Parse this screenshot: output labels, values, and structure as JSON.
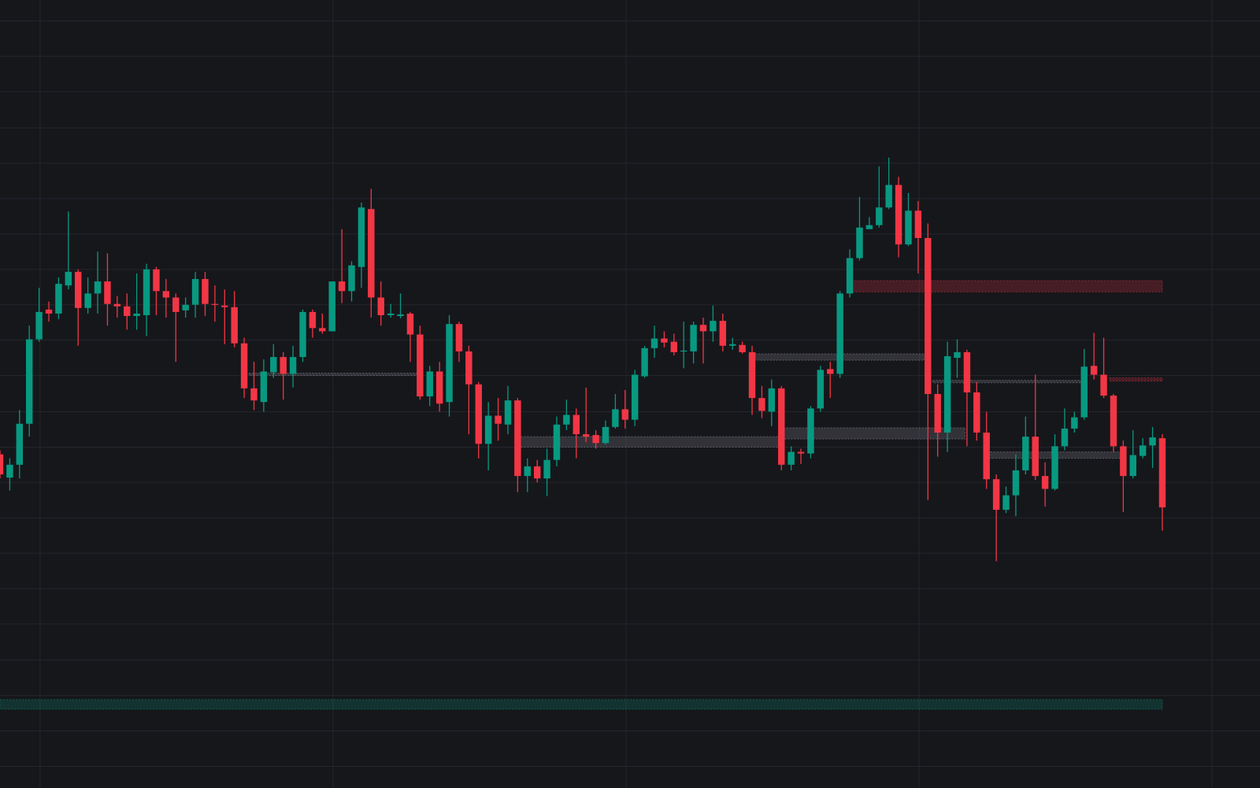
{
  "chart_data": {
    "type": "candlestick",
    "up_color": "#089981",
    "down_color": "#f23645",
    "grid": true,
    "xlim": [
      0,
      129
    ],
    "ylim": [
      0,
      980
    ],
    "xticks": [
      4.1,
      34.1,
      64.1,
      94.1,
      124.1
    ],
    "yticks": [
      27,
      71,
      115,
      159,
      204,
      248,
      292,
      336,
      380,
      424,
      468,
      513,
      557,
      601,
      645,
      689,
      733,
      777,
      821,
      866,
      910,
      954
    ],
    "open": [
      415,
      386,
      402,
      453,
      558,
      595,
      590,
      625,
      642,
      597,
      615,
      630,
      602,
      599,
      587,
      588,
      645,
      618,
      610,
      594,
      601,
      633,
      602,
      600,
      598,
      553,
      497,
      480,
      517,
      536,
      515,
      536,
      592,
      572,
      568,
      630,
      618,
      648,
      720,
      610,
      588,
      587,
      590,
      564,
      487,
      518,
      480,
      577,
      543,
      502,
      428,
      463,
      452,
      482,
      388,
      400,
      385,
      408,
      452,
      464,
      440,
      439,
      429,
      449,
      471,
      458,
      512,
      547,
      559,
      555,
      543,
      543,
      576,
      568,
      581,
      550,
      551,
      542,
      485,
      468,
      497,
      402,
      418,
      416,
      472,
      521,
      515,
      615,
      659,
      695,
      700,
      722,
      750,
      676,
      718,
      684,
      490,
      442,
      535,
      542,
      492,
      442,
      384,
      346,
      364,
      395,
      437,
      388,
      372,
      425,
      447,
      461,
      525,
      514,
      488,
      425,
      388,
      413,
      426,
      435
    ],
    "high": [
      420,
      410,
      470,
      575,
      622,
      605,
      635,
      717,
      645,
      635,
      667,
      665,
      612,
      615,
      640,
      652,
      648,
      633,
      615,
      610,
      642,
      642,
      625,
      620,
      618,
      560,
      530,
      533,
      552,
      542,
      550,
      595,
      595,
      590,
      630,
      695,
      655,
      728,
      745,
      630,
      602,
      615,
      592,
      575,
      525,
      530,
      588,
      580,
      550,
      505,
      480,
      485,
      500,
      485,
      410,
      408,
      422,
      462,
      483,
      472,
      498,
      445,
      457,
      490,
      495,
      520,
      550,
      575,
      568,
      565,
      580,
      580,
      585,
      600,
      590,
      560,
      555,
      550,
      500,
      508,
      500,
      425,
      422,
      475,
      525,
      530,
      618,
      670,
      735,
      710,
      773,
      784,
      760,
      740,
      730,
      702,
      502,
      555,
      558,
      545,
      505,
      468,
      390,
      375,
      415,
      462,
      514,
      405,
      440,
      472,
      468,
      546,
      566,
      560,
      490,
      432,
      445,
      435,
      449,
      440
    ],
    "low": [
      385,
      370,
      385,
      437,
      555,
      580,
      583,
      620,
      550,
      590,
      590,
      575,
      585,
      570,
      570,
      562,
      588,
      585,
      530,
      585,
      585,
      587,
      580,
      552,
      548,
      485,
      470,
      468,
      510,
      483,
      498,
      530,
      560,
      565,
      568,
      603,
      605,
      622,
      585,
      575,
      585,
      584,
      530,
      483,
      475,
      468,
      462,
      530,
      440,
      410,
      395,
      432,
      440,
      368,
      368,
      380,
      363,
      400,
      445,
      410,
      430,
      422,
      427,
      447,
      447,
      450,
      510,
      535,
      548,
      538,
      522,
      528,
      528,
      555,
      543,
      545,
      540,
      464,
      460,
      450,
      395,
      395,
      403,
      410,
      468,
      485,
      510,
      610,
      656,
      695,
      697,
      720,
      660,
      674,
      640,
      358,
      412,
      418,
      510,
      425,
      432,
      372,
      282,
      342,
      338,
      390,
      383,
      350,
      370,
      420,
      442,
      458,
      508,
      485,
      418,
      343,
      385,
      410,
      398,
      320
    ],
    "close": [
      390,
      402,
      453,
      558,
      592,
      590,
      627,
      642,
      597,
      615,
      630,
      602,
      599,
      587,
      590,
      645,
      618,
      610,
      592,
      601,
      633,
      602,
      601,
      598,
      553,
      497,
      482,
      518,
      536,
      515,
      536,
      592,
      572,
      568,
      630,
      618,
      650,
      722,
      610,
      588,
      590,
      589,
      564,
      487,
      518,
      478,
      577,
      543,
      502,
      428,
      463,
      453,
      482,
      388,
      400,
      385,
      408,
      452,
      464,
      440,
      437,
      429,
      449,
      471,
      458,
      514,
      547,
      559,
      554,
      542,
      544,
      576,
      568,
      581,
      550,
      552,
      542,
      485,
      469,
      497,
      402,
      418,
      416,
      472,
      520,
      515,
      615,
      659,
      697,
      700,
      722,
      750,
      676,
      718,
      684,
      490,
      442,
      537,
      542,
      492,
      442,
      384,
      346,
      364,
      395,
      437,
      388,
      372,
      425,
      447,
      461,
      524,
      514,
      488,
      425,
      388,
      414,
      426,
      436,
      349
    ],
    "zones": [
      {
        "from": 87.2,
        "to": 119,
        "low": 617,
        "high": 631,
        "color": "#f23645"
      },
      {
        "from": 77,
        "to": 94.6,
        "low": 532,
        "high": 540,
        "color": "#9598a1"
      },
      {
        "from": 25.5,
        "to": 42.6,
        "low": 513,
        "high": 516,
        "color": "#9598a1"
      },
      {
        "from": 53,
        "to": 79.8,
        "low": 424,
        "high": 437,
        "color": "#9598a1"
      },
      {
        "from": 80.2,
        "to": 98.8,
        "low": 434,
        "high": 448,
        "color": "#9598a1"
      },
      {
        "from": 95.5,
        "to": 111,
        "low": 504,
        "high": 507,
        "color": "#9598a1"
      },
      {
        "from": 113.6,
        "to": 119,
        "low": 506,
        "high": 510,
        "color": "#f23645"
      },
      {
        "from": 101.4,
        "to": 114.8,
        "low": 410,
        "high": 418,
        "color": "#9598a1"
      },
      {
        "from": 0,
        "to": 119,
        "low": 98,
        "high": 110,
        "color": "#089981"
      }
    ]
  }
}
